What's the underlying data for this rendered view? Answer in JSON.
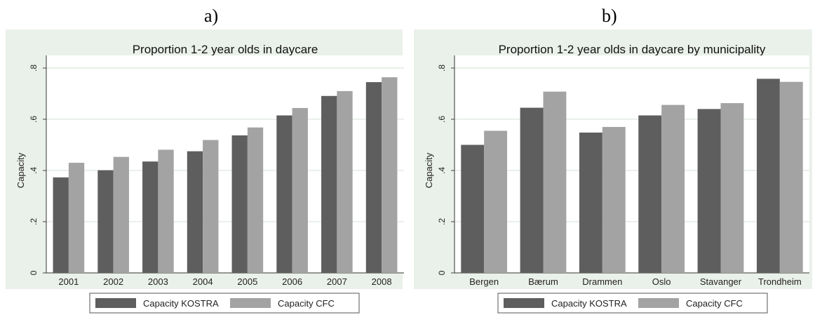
{
  "panel_labels": [
    "a)",
    "b)"
  ],
  "colors": {
    "kostra": "#5e5e5e",
    "cfc": "#a3a3a3",
    "panel_bg": "#eaf0ea",
    "plot_bg": "#ffffff",
    "grid": "#e3ebe3"
  },
  "chart_data": [
    {
      "type": "bar",
      "title": "Proportion 1-2 year olds in daycare",
      "xlabel": "",
      "ylabel": "Capacity",
      "ylim": [
        0,
        0.8
      ],
      "yticks": [
        0,
        0.2,
        0.4,
        0.6,
        0.8
      ],
      "ytick_labels": [
        "0",
        ".2",
        ".4",
        ".6",
        ".8"
      ],
      "grid": true,
      "legend_position": "bottom",
      "categories": [
        "2001",
        "2002",
        "2003",
        "2004",
        "2005",
        "2006",
        "2007",
        "2008"
      ],
      "series": [
        {
          "name": "Capacity KOSTRA",
          "values": [
            0.373,
            0.401,
            0.435,
            0.475,
            0.537,
            0.615,
            0.691,
            0.745
          ]
        },
        {
          "name": "Capacity CFC",
          "values": [
            0.43,
            0.453,
            0.481,
            0.519,
            0.568,
            0.644,
            0.71,
            0.764
          ]
        }
      ]
    },
    {
      "type": "bar",
      "title": "Proportion 1-2 year olds in daycare by municipality",
      "xlabel": "",
      "ylabel": "Capacity",
      "ylim": [
        0,
        0.8
      ],
      "yticks": [
        0,
        0.2,
        0.4,
        0.6,
        0.8
      ],
      "ytick_labels": [
        "0",
        ".2",
        ".4",
        ".6",
        ".8"
      ],
      "grid": true,
      "legend_position": "bottom",
      "categories": [
        "Bergen",
        "Bærum",
        "Drammen",
        "Oslo",
        "Stavanger",
        "Trondheim"
      ],
      "series": [
        {
          "name": "Capacity KOSTRA",
          "values": [
            0.5,
            0.645,
            0.548,
            0.615,
            0.64,
            0.758
          ]
        },
        {
          "name": "Capacity CFC",
          "values": [
            0.555,
            0.708,
            0.57,
            0.656,
            0.663,
            0.746
          ]
        }
      ]
    }
  ]
}
